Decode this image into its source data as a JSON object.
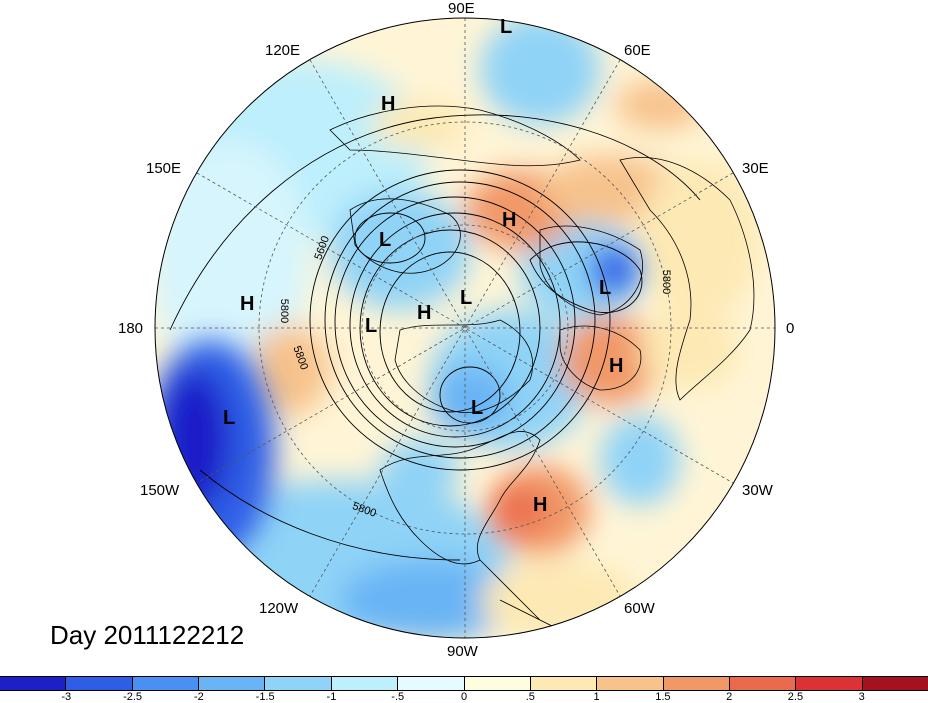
{
  "projection": "north-polar-stereographic",
  "longitude_labels": {
    "lon_90e": "90E",
    "lon_60e": "60E",
    "lon_120e": "120E",
    "lon_30e": "30E",
    "lon_150e": "150E",
    "lon_0": "0",
    "lon_180": "180",
    "lon_30w": "30W",
    "lon_150w": "150W",
    "lon_60w": "60W",
    "lon_120w": "120W",
    "lon_90w": "90W"
  },
  "pressure_centers": [
    {
      "type": "L",
      "name": "low-siberia-top"
    },
    {
      "type": "H",
      "name": "high-east-siberia"
    },
    {
      "type": "H",
      "name": "high-west-siberia"
    },
    {
      "type": "L",
      "name": "low-east-asia"
    },
    {
      "type": "L",
      "name": "low-europe"
    },
    {
      "type": "L",
      "name": "low-arctic"
    },
    {
      "type": "H",
      "name": "high-arctic"
    },
    {
      "type": "L",
      "name": "low-bering"
    },
    {
      "type": "H",
      "name": "high-north-pacific"
    },
    {
      "type": "H",
      "name": "high-east-atlantic"
    },
    {
      "type": "L",
      "name": "low-hudson-bay"
    },
    {
      "type": "L",
      "name": "low-gulf-of-alaska"
    },
    {
      "type": "H",
      "name": "high-west-atlantic"
    }
  ],
  "contour_labels": {
    "c1": "5600",
    "c2": "5800",
    "c3": "5800",
    "c4": "5800",
    "c5": "5800"
  },
  "title": "Day 2011122212",
  "colorbar": {
    "colors": [
      "#1f1fc8",
      "#2f5ee6",
      "#4a8ff2",
      "#69b4f5",
      "#8fd3f7",
      "#bdeffc",
      "#e6fbff",
      "#fffde0",
      "#fde9b4",
      "#f7c28c",
      "#f19868",
      "#ea6a4e",
      "#dc3236",
      "#a5121f"
    ],
    "tick_labels": [
      "-3",
      "-2.5",
      "-2",
      "-1.5",
      "-1",
      "-.5",
      "0",
      ".5",
      "1",
      "1.5",
      "2",
      "2.5",
      "3"
    ]
  }
}
